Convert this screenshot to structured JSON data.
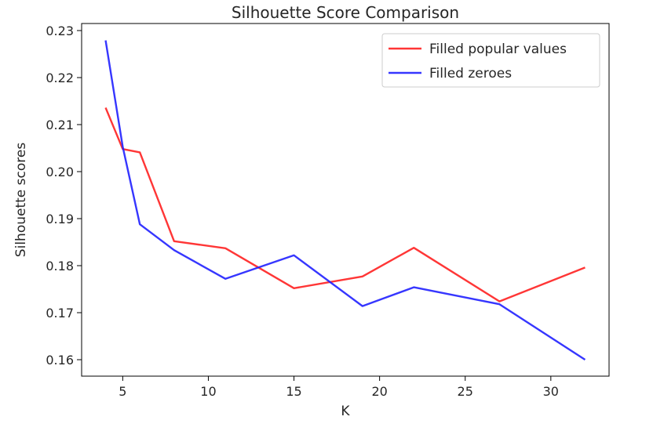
{
  "chart_data": {
    "type": "line",
    "title": "Silhouette Score Comparison",
    "xlabel": "K",
    "ylabel": "Silhouette scores",
    "xlim": [
      2.6,
      33.4
    ],
    "ylim": [
      0.1565,
      0.2315
    ],
    "xticks": [
      5,
      10,
      15,
      20,
      25,
      30
    ],
    "yticks": [
      0.16,
      0.17,
      0.18,
      0.19,
      0.2,
      0.21,
      0.22,
      0.23
    ],
    "ytick_labels": [
      "0.16",
      "0.17",
      "0.18",
      "0.19",
      "0.20",
      "0.21",
      "0.22",
      "0.23"
    ],
    "grid": false,
    "legend_position": "top-right",
    "series": [
      {
        "name": "Filled popular values",
        "color": "#ff2020",
        "x": [
          4,
          5,
          6,
          8,
          11,
          15,
          19,
          22,
          27,
          32
        ],
        "y": [
          0.2136,
          0.2048,
          0.2041,
          0.1852,
          0.1837,
          0.1752,
          0.1777,
          0.1838,
          0.1724,
          0.1796
        ]
      },
      {
        "name": "Filled zeroes",
        "color": "#2020ff",
        "x": [
          4,
          5,
          6,
          8,
          11,
          15,
          19,
          22,
          27,
          32
        ],
        "y": [
          0.2279,
          0.2053,
          0.1888,
          0.1833,
          0.1772,
          0.1822,
          0.1714,
          0.1754,
          0.1718,
          0.16
        ]
      }
    ]
  }
}
